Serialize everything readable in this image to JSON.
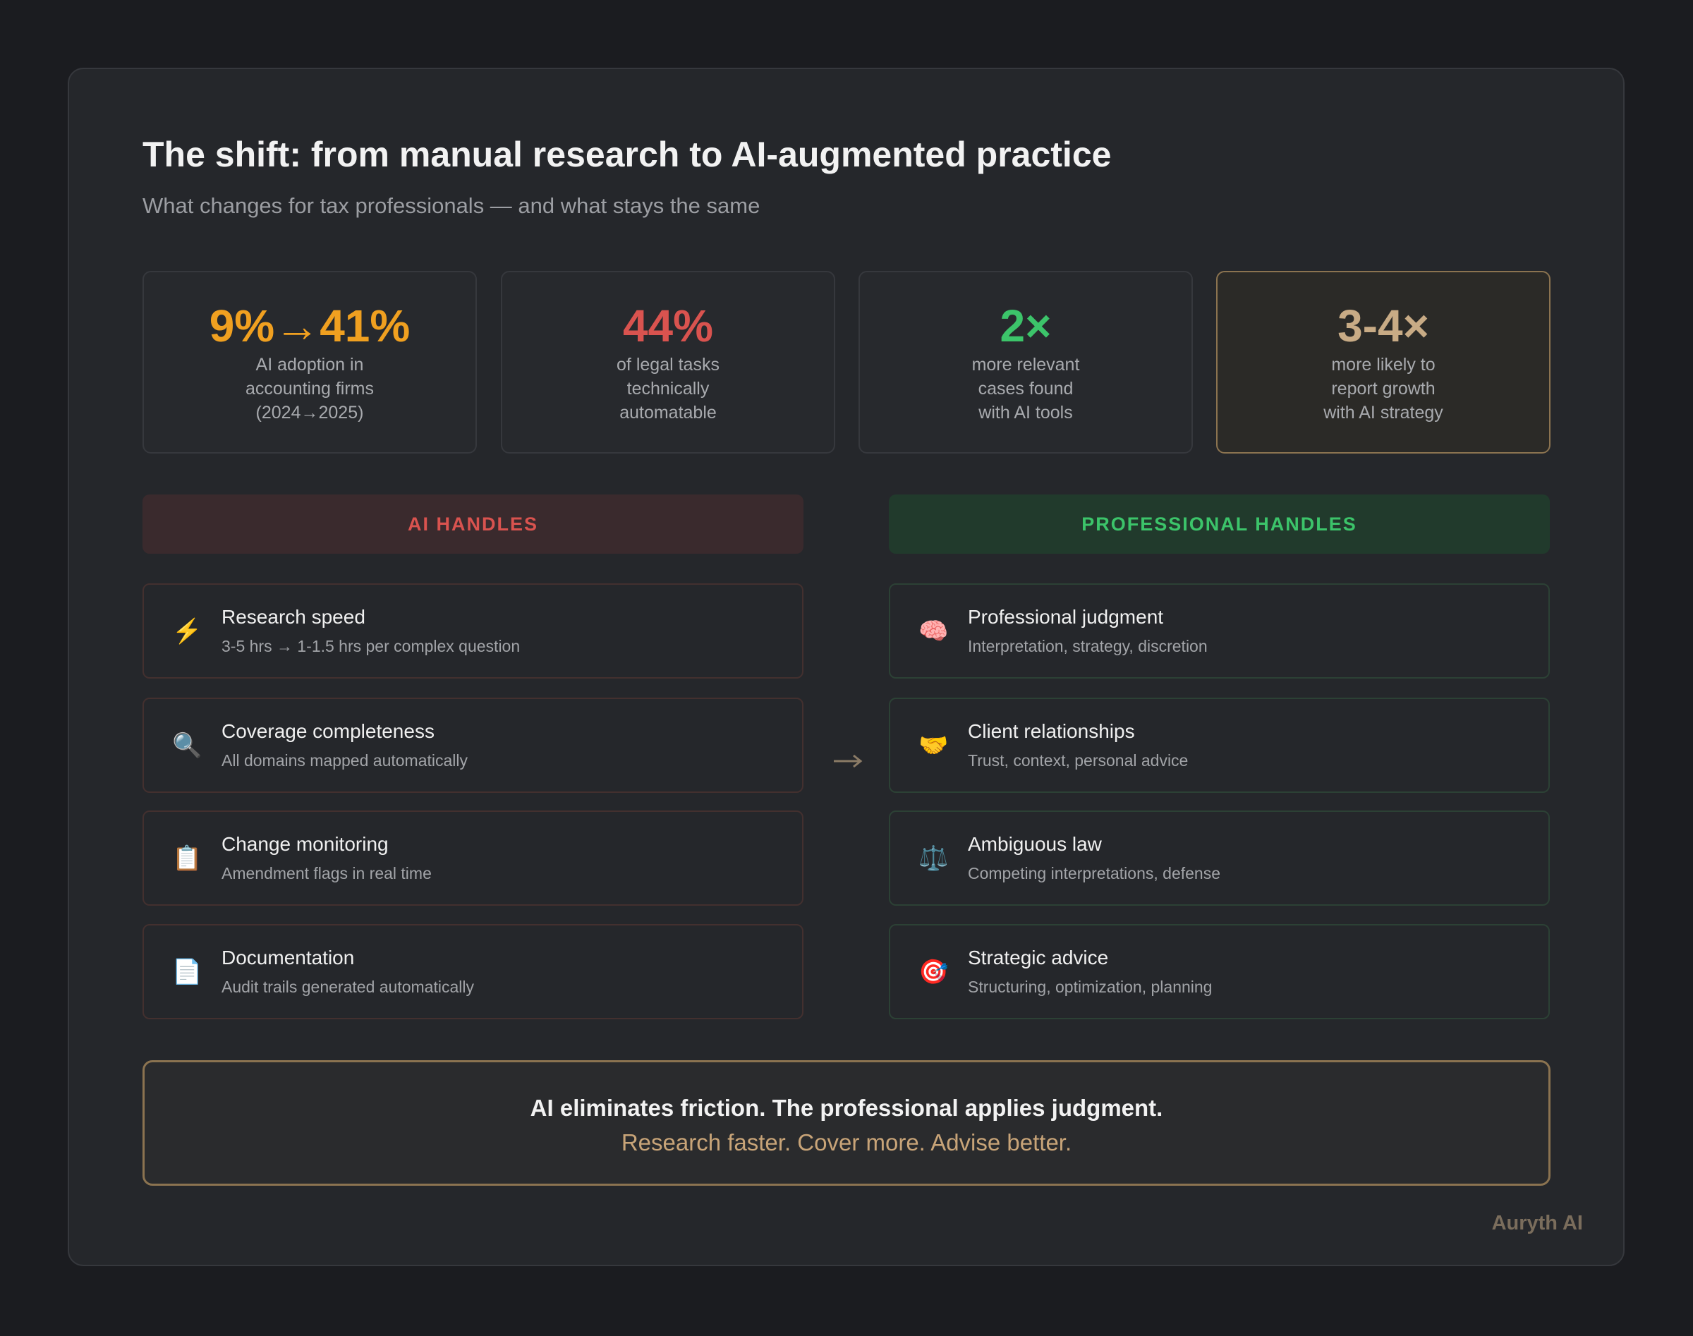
{
  "header": {
    "title": "The shift: from manual research to AI-augmented practice",
    "subtitle": "What changes for tax professionals — and what stays the same"
  },
  "stats": [
    {
      "value": "9%→41%",
      "lines": [
        "AI adoption in",
        "accounting firms",
        "(2024→2025)"
      ]
    },
    {
      "value": "44%",
      "lines": [
        "of legal tasks",
        "technically",
        "automatable"
      ]
    },
    {
      "value": "2×",
      "lines": [
        "more relevant",
        "cases found",
        "with AI tools"
      ]
    },
    {
      "value": "3-4×",
      "lines": [
        "more likely to",
        "report growth",
        "with AI strategy"
      ]
    }
  ],
  "columns": [
    {
      "heading": "AI HANDLES",
      "items": [
        {
          "icon": "⚡",
          "title": "Research speed",
          "desc": "3-5 hrs → 1-1.5 hrs per complex question"
        },
        {
          "icon": "🔍",
          "title": "Coverage completeness",
          "desc": "All domains mapped automatically"
        },
        {
          "icon": "📋",
          "title": "Change monitoring",
          "desc": "Amendment flags in real time"
        },
        {
          "icon": "📄",
          "title": "Documentation",
          "desc": "Audit trails generated automatically"
        }
      ]
    },
    {
      "heading": "PROFESSIONAL HANDLES",
      "items": [
        {
          "icon": "🧠",
          "title": "Professional judgment",
          "desc": "Interpretation, strategy, discretion"
        },
        {
          "icon": "🤝",
          "title": "Client relationships",
          "desc": "Trust, context, personal advice"
        },
        {
          "icon": "⚖️",
          "title": "Ambiguous law",
          "desc": "Competing interpretations, defense"
        },
        {
          "icon": "🎯",
          "title": "Strategic advice",
          "desc": "Structuring, optimization, planning"
        }
      ]
    }
  ],
  "summary": {
    "line1": "AI eliminates friction. The professional applies judgment.",
    "line2": "Research faster. Cover more. Advise better."
  },
  "footer": "Auryth AI"
}
